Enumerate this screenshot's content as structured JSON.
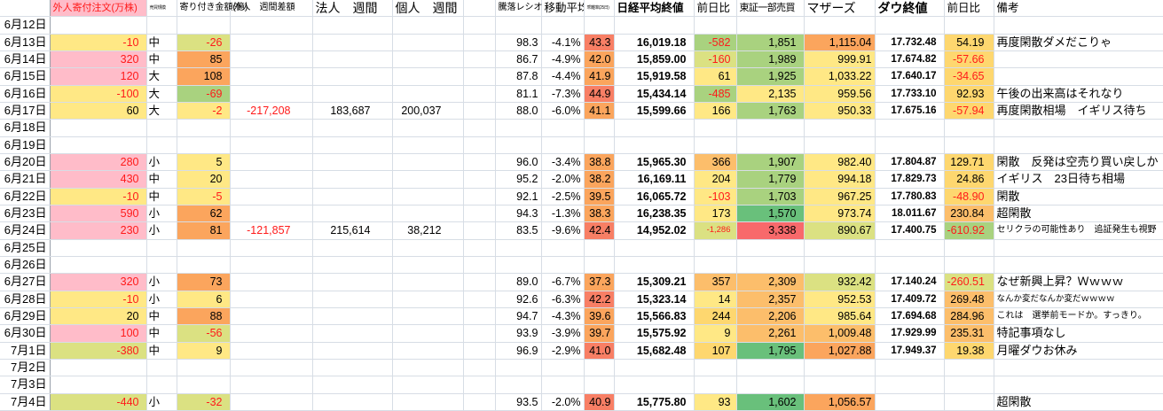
{
  "palette": {
    "pink": "#ffbcc9",
    "yellow": "#ffe885",
    "gold": "#fed76f",
    "yellow_green": "#dbe182",
    "light_green": "#a9d27f",
    "green": "#69c07b",
    "orange": "#fba55d",
    "light_orange": "#fcbe6b",
    "salmon": "#f87f65",
    "scale_red": "#f8696b",
    "negative_text": "#ff1a1a",
    "header_pink": "#ffbcc9"
  },
  "header": {
    "blank": "",
    "foreign_order": "外人寄付注文(万株)",
    "scale": "売買規模",
    "opening_amount": "寄り付き金額(億)",
    "foreign_week": "外人　週間差額",
    "corp_week": "法人　週間",
    "individual_week": "個人　週間",
    "spacer": "",
    "updown_ratio": "騰落レシオ",
    "moving_average": "移動平均",
    "deviation": "乖離率(25日)",
    "nikkei_close": "日経平均終値",
    "nikkei_change": "前日比",
    "tse_volume": "東証一部売買",
    "mothers": "マザーズ",
    "dow_close": "ダウ終値",
    "dow_change": "前日比",
    "remarks": "備考"
  },
  "rows": [
    {
      "date": "6月12日"
    },
    {
      "date": "6月13日",
      "c1": {
        "v": "-10",
        "fg": "r",
        "bg": "y"
      },
      "scale": {
        "v": "中"
      },
      "c3": {
        "v": "-26",
        "fg": "r",
        "bg": "yg"
      },
      "ratio": {
        "v": "98.3"
      },
      "ma": {
        "v": "-4.1%"
      },
      "rsi": {
        "v": "43.3",
        "bg": "so"
      },
      "nikkei": {
        "v": "16,019.18"
      },
      "d1": {
        "v": "-582",
        "fg": "r",
        "bg": "lg"
      },
      "tosho": {
        "v": "1,851",
        "bg": "lg"
      },
      "mothers": {
        "v": "1,115.04",
        "bg": "o"
      },
      "dow": {
        "v": "17.732.48"
      },
      "d2": {
        "v": "54.19",
        "bg": "go"
      },
      "remark": {
        "v": "再度閑散ダメだこりゃ"
      }
    },
    {
      "date": "6月14日",
      "c1": {
        "v": "320",
        "fg": "r",
        "bg": "p"
      },
      "scale": {
        "v": "中"
      },
      "c3": {
        "v": "85",
        "bg": "o"
      },
      "ratio": {
        "v": "86.7"
      },
      "ma": {
        "v": "-4.9%"
      },
      "rsi": {
        "v": "42.0",
        "bg": "o"
      },
      "nikkei": {
        "v": "15,859.00"
      },
      "d1": {
        "v": "-160",
        "fg": "r",
        "bg": "yg"
      },
      "tosho": {
        "v": "1,989",
        "bg": "lg"
      },
      "mothers": {
        "v": "999.91",
        "bg": "y"
      },
      "dow": {
        "v": "17.674.82"
      },
      "d2": {
        "v": "-57.66",
        "fg": "r",
        "bg": "go"
      }
    },
    {
      "date": "6月15日",
      "c1": {
        "v": "120",
        "fg": "r",
        "bg": "p"
      },
      "scale": {
        "v": "大"
      },
      "c3": {
        "v": "108",
        "bg": "o"
      },
      "ratio": {
        "v": "87.8"
      },
      "ma": {
        "v": "-4.4%"
      },
      "rsi": {
        "v": "41.9",
        "bg": "o"
      },
      "nikkei": {
        "v": "15,919.58"
      },
      "d1": {
        "v": "61",
        "bg": "y"
      },
      "tosho": {
        "v": "1,925",
        "bg": "lg"
      },
      "mothers": {
        "v": "1,033.22",
        "bg": "y"
      },
      "dow": {
        "v": "17.640.17"
      },
      "d2": {
        "v": "-34.65",
        "fg": "r",
        "bg": "go"
      }
    },
    {
      "date": "6月16日",
      "c1": {
        "v": "-100",
        "fg": "r",
        "bg": "y"
      },
      "scale": {
        "v": "大"
      },
      "c3": {
        "v": "-69",
        "fg": "r",
        "bg": "lg"
      },
      "ratio": {
        "v": "81.1"
      },
      "ma": {
        "v": "-7.3%"
      },
      "rsi": {
        "v": "44.9",
        "bg": "so"
      },
      "nikkei": {
        "v": "15,434.14"
      },
      "d1": {
        "v": "-485",
        "fg": "r",
        "bg": "lg"
      },
      "tosho": {
        "v": "2,135",
        "bg": "y"
      },
      "mothers": {
        "v": "959.56",
        "bg": "y"
      },
      "dow": {
        "v": "17.733.10"
      },
      "d2": {
        "v": "92.93",
        "bg": "go"
      },
      "remark": {
        "v": "午後の出来高はそれなり"
      }
    },
    {
      "date": "6月17日",
      "c1": {
        "v": "60",
        "bg": "y"
      },
      "scale": {
        "v": "大"
      },
      "c3": {
        "v": "-2",
        "fg": "r",
        "bg": "y"
      },
      "w1": {
        "v": "-217,208",
        "fg": "r"
      },
      "w2": {
        "v": "183,687"
      },
      "w3": {
        "v": "200,037"
      },
      "ratio": {
        "v": "88.0"
      },
      "ma": {
        "v": "-6.0%"
      },
      "rsi": {
        "v": "41.1",
        "bg": "o"
      },
      "nikkei": {
        "v": "15,599.66"
      },
      "d1": {
        "v": "166",
        "bg": "y"
      },
      "tosho": {
        "v": "1,763",
        "bg": "lg"
      },
      "mothers": {
        "v": "950.33",
        "bg": "y"
      },
      "dow": {
        "v": "17.675.16"
      },
      "d2": {
        "v": "-57.94",
        "fg": "r",
        "bg": "go"
      },
      "remark": {
        "v": "再度閑散相場　イギリス待ち"
      }
    },
    {
      "date": "6月18日"
    },
    {
      "date": "6月19日"
    },
    {
      "date": "6月20日",
      "c1": {
        "v": "280",
        "fg": "r",
        "bg": "p"
      },
      "scale": {
        "v": "小"
      },
      "c3": {
        "v": "5",
        "bg": "y"
      },
      "ratio": {
        "v": "96.0"
      },
      "ma": {
        "v": "-3.4%"
      },
      "rsi": {
        "v": "38.8",
        "bg": "o"
      },
      "nikkei": {
        "v": "15,965.30"
      },
      "d1": {
        "v": "366",
        "bg": "lo"
      },
      "tosho": {
        "v": "1,907",
        "bg": "lg"
      },
      "mothers": {
        "v": "982.40",
        "bg": "y"
      },
      "dow": {
        "v": "17.804.87"
      },
      "d2": {
        "v": "129.71",
        "bg": "go"
      },
      "remark": {
        "v": "閑散　反発は空売り買い戻しか"
      }
    },
    {
      "date": "6月21日",
      "c1": {
        "v": "430",
        "fg": "r",
        "bg": "p"
      },
      "scale": {
        "v": "中"
      },
      "c3": {
        "v": "20",
        "bg": "y"
      },
      "ratio": {
        "v": "95.2"
      },
      "ma": {
        "v": "-2.0%"
      },
      "rsi": {
        "v": "38.2",
        "bg": "o"
      },
      "nikkei": {
        "v": "16,169.11"
      },
      "d1": {
        "v": "204",
        "bg": "y"
      },
      "tosho": {
        "v": "1,779",
        "bg": "lg"
      },
      "mothers": {
        "v": "994.18",
        "bg": "y"
      },
      "dow": {
        "v": "17.829.73"
      },
      "d2": {
        "v": "24.86",
        "bg": "go"
      },
      "remark": {
        "v": "イギリス　23日待ち相場"
      }
    },
    {
      "date": "6月22日",
      "c1": {
        "v": "-10",
        "fg": "r",
        "bg": "y"
      },
      "scale": {
        "v": "中"
      },
      "c3": {
        "v": "-5",
        "fg": "r",
        "bg": "y"
      },
      "ratio": {
        "v": "92.1"
      },
      "ma": {
        "v": "-2.5%"
      },
      "rsi": {
        "v": "39.5",
        "bg": "o"
      },
      "nikkei": {
        "v": "16,065.72"
      },
      "d1": {
        "v": "-103",
        "fg": "r",
        "bg": "y"
      },
      "tosho": {
        "v": "1,703",
        "bg": "lg"
      },
      "mothers": {
        "v": "967.25",
        "bg": "y"
      },
      "dow": {
        "v": "17.780.83"
      },
      "d2": {
        "v": "-48.90",
        "fg": "r",
        "bg": "go"
      },
      "remark": {
        "v": "閑散"
      }
    },
    {
      "date": "6月23日",
      "c1": {
        "v": "590",
        "fg": "r",
        "bg": "p"
      },
      "scale": {
        "v": "小"
      },
      "c3": {
        "v": "62",
        "bg": "o"
      },
      "ratio": {
        "v": "94.3"
      },
      "ma": {
        "v": "-1.3%"
      },
      "rsi": {
        "v": "38.3",
        "bg": "o"
      },
      "nikkei": {
        "v": "16,238.35"
      },
      "d1": {
        "v": "173",
        "bg": "y"
      },
      "tosho": {
        "v": "1,570",
        "bg": "g"
      },
      "mothers": {
        "v": "973.74",
        "bg": "y"
      },
      "dow": {
        "v": "18.011.67"
      },
      "d2": {
        "v": "230.84",
        "bg": "lo"
      },
      "remark": {
        "v": "超閑散"
      }
    },
    {
      "date": "6月24日",
      "c1": {
        "v": "230",
        "fg": "r",
        "bg": "p"
      },
      "scale": {
        "v": "小"
      },
      "c3": {
        "v": "81",
        "bg": "o"
      },
      "w1": {
        "v": "-121,857",
        "fg": "r"
      },
      "w2": {
        "v": "215,614"
      },
      "w3": {
        "v": "38,212"
      },
      "ratio": {
        "v": "83.5"
      },
      "ma": {
        "v": "-9.6%"
      },
      "rsi": {
        "v": "42.4",
        "bg": "so"
      },
      "nikkei": {
        "v": "14,952.02"
      },
      "d1": {
        "v": "-1,286",
        "fg": "r",
        "bg": "yg",
        "sz": "sm"
      },
      "tosho": {
        "v": "3,338",
        "bg": "r"
      },
      "mothers": {
        "v": "890.67",
        "bg": "yg"
      },
      "dow": {
        "v": "17.400.75"
      },
      "d2": {
        "v": "-610.92",
        "fg": "r",
        "bg": "lg"
      },
      "remark": {
        "v": "セリクラの可能性あり　追証発生も視野",
        "sz": "xs"
      }
    },
    {
      "date": "6月25日"
    },
    {
      "date": "6月26日"
    },
    {
      "date": "6月27日",
      "c1": {
        "v": "320",
        "fg": "r",
        "bg": "p"
      },
      "scale": {
        "v": "小"
      },
      "c3": {
        "v": "73",
        "bg": "o"
      },
      "ratio": {
        "v": "89.0"
      },
      "ma": {
        "v": "-6.7%"
      },
      "rsi": {
        "v": "37.3",
        "bg": "o"
      },
      "nikkei": {
        "v": "15,309.21"
      },
      "d1": {
        "v": "357",
        "bg": "lo"
      },
      "tosho": {
        "v": "2,309",
        "bg": "lo"
      },
      "mothers": {
        "v": "932.42",
        "bg": "yg"
      },
      "dow": {
        "v": "17.140.24"
      },
      "d2": {
        "v": "-260.51",
        "fg": "r",
        "bg": "yg"
      },
      "remark": {
        "v": "なぜ新興上昇？Ｗｗｗｗ"
      }
    },
    {
      "date": "6月28日",
      "c1": {
        "v": "-10",
        "fg": "r",
        "bg": "y"
      },
      "scale": {
        "v": "小"
      },
      "c3": {
        "v": "6",
        "bg": "y"
      },
      "ratio": {
        "v": "92.6"
      },
      "ma": {
        "v": "-6.3%"
      },
      "rsi": {
        "v": "42.2",
        "bg": "so"
      },
      "nikkei": {
        "v": "15,323.14"
      },
      "d1": {
        "v": "14",
        "bg": "y"
      },
      "tosho": {
        "v": "2,357",
        "bg": "lo"
      },
      "mothers": {
        "v": "952.53",
        "bg": "y"
      },
      "dow": {
        "v": "17.409.72"
      },
      "d2": {
        "v": "269.48",
        "bg": "lo"
      },
      "remark": {
        "v": "なんか変だなんか変だｗｗｗｗ",
        "sz": "sm"
      }
    },
    {
      "date": "6月29日",
      "c1": {
        "v": "20",
        "bg": "y"
      },
      "scale": {
        "v": "中"
      },
      "c3": {
        "v": "88",
        "bg": "o"
      },
      "ratio": {
        "v": "94.7"
      },
      "ma": {
        "v": "-4.3%"
      },
      "rsi": {
        "v": "39.6",
        "bg": "o"
      },
      "nikkei": {
        "v": "15,566.83"
      },
      "d1": {
        "v": "244",
        "bg": "go"
      },
      "tosho": {
        "v": "2,206",
        "bg": "lo"
      },
      "mothers": {
        "v": "985.64",
        "bg": "y"
      },
      "dow": {
        "v": "17.694.68"
      },
      "d2": {
        "v": "284.96",
        "bg": "lo"
      },
      "remark": {
        "v": "これは　選挙前モードか。すっきり。",
        "sz": "xs"
      }
    },
    {
      "date": "6月30日",
      "c1": {
        "v": "100",
        "fg": "r",
        "bg": "p"
      },
      "scale": {
        "v": "中"
      },
      "c3": {
        "v": "-56",
        "fg": "r",
        "bg": "yg"
      },
      "ratio": {
        "v": "93.9"
      },
      "ma": {
        "v": "-3.9%"
      },
      "rsi": {
        "v": "39.7",
        "bg": "o"
      },
      "nikkei": {
        "v": "15,575.92"
      },
      "d1": {
        "v": "9",
        "bg": "y"
      },
      "tosho": {
        "v": "2,261",
        "bg": "lo"
      },
      "mothers": {
        "v": "1,009.48",
        "bg": "lo"
      },
      "dow": {
        "v": "17.929.99"
      },
      "d2": {
        "v": "235.31",
        "bg": "lo"
      },
      "remark": {
        "v": "特記事項なし"
      }
    },
    {
      "date": "7月1日",
      "c1": {
        "v": "-380",
        "fg": "r",
        "bg": "yg"
      },
      "scale": {
        "v": "中"
      },
      "c3": {
        "v": "9",
        "bg": "y"
      },
      "ratio": {
        "v": "96.9"
      },
      "ma": {
        "v": "-2.9%"
      },
      "rsi": {
        "v": "41.0",
        "bg": "so"
      },
      "nikkei": {
        "v": "15,682.48"
      },
      "d1": {
        "v": "107",
        "bg": "go"
      },
      "tosho": {
        "v": "1,795",
        "bg": "g"
      },
      "mothers": {
        "v": "1,027.88",
        "bg": "o"
      },
      "dow": {
        "v": "17.949.37"
      },
      "d2": {
        "v": "19.38",
        "bg": "go"
      },
      "remark": {
        "v": "月曜ダウお休み"
      }
    },
    {
      "date": "7月2日"
    },
    {
      "date": "7月3日"
    },
    {
      "date": "7月4日",
      "c1": {
        "v": "-440",
        "fg": "r",
        "bg": "yg"
      },
      "scale": {
        "v": "小"
      },
      "c3": {
        "v": "-32",
        "fg": "r",
        "bg": "yg"
      },
      "ratio": {
        "v": "93.5"
      },
      "ma": {
        "v": "-2.0%"
      },
      "rsi": {
        "v": "40.9",
        "bg": "so"
      },
      "nikkei": {
        "v": "15,775.80"
      },
      "d1": {
        "v": "93",
        "bg": "y"
      },
      "tosho": {
        "v": "1,602",
        "bg": "g"
      },
      "mothers": {
        "v": "1,056.57",
        "bg": "o"
      },
      "remark": {
        "v": "超閑散"
      }
    }
  ]
}
